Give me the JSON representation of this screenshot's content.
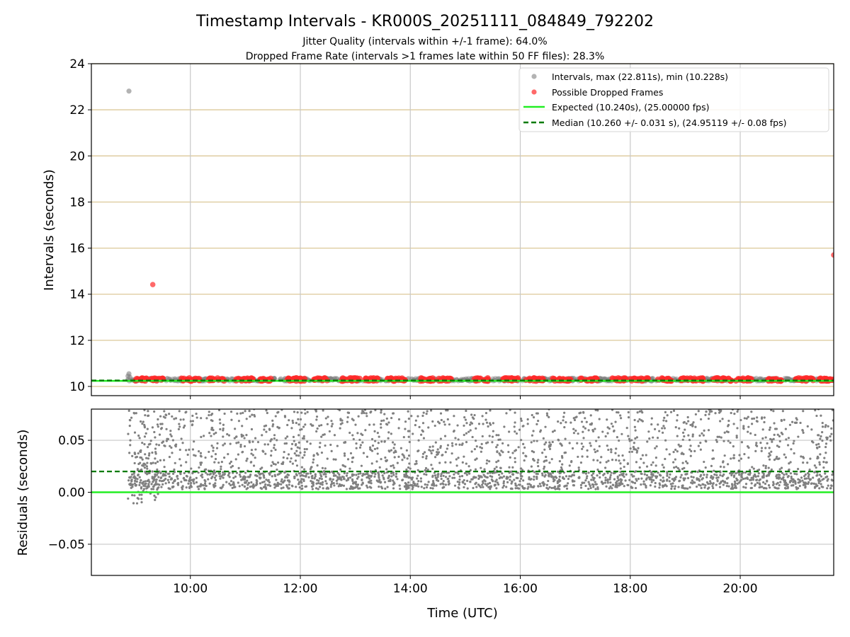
{
  "title": "Timestamp Intervals - KR000S_20251111_084849_792202",
  "subtitle_1": "Jitter Quality (intervals within +/-1 frame): 64.0%",
  "subtitle_2": "Dropped Frame Rate (intervals >1 frames late within 50 FF files): 28.3%",
  "colors": {
    "intervals": "#808080",
    "dropped": "#ff2a2a",
    "expected": "#22ee22",
    "median": "#007a00",
    "hgrid_top": "#d9c38f",
    "grid": "#c8c8c8"
  },
  "chart_data": [
    {
      "type": "scatter",
      "panel": "top",
      "xlabel": "",
      "ylabel": "Intervals (seconds)",
      "xlim": [
        "08:12",
        "21:42"
      ],
      "ylim": [
        9.6,
        24
      ],
      "yticks": [
        10,
        12,
        14,
        16,
        18,
        20,
        22,
        24
      ],
      "ytick_labels": [
        "10",
        "12",
        "14",
        "16",
        "18",
        "20",
        "22",
        "24"
      ],
      "xtick_values": [
        "10:00",
        "12:00",
        "14:00",
        "16:00",
        "18:00",
        "20:00"
      ],
      "grid": true,
      "legend_position": "top-right",
      "legend": [
        "Intervals, max (22.811s), min (10.228s)",
        "Possible Dropped Frames",
        "Expected (10.240s), (25.00000 fps)",
        "Median (10.260 +/- 0.031 s), (24.95119 +/- 0.08 fps)"
      ],
      "series": [
        {
          "name": "Intervals, max (22.811s), min (10.228s)",
          "kind": "scatter",
          "outliers": [
            {
              "x": "08:53",
              "y": 22.81
            },
            {
              "x": "08:53",
              "y": 10.55
            },
            {
              "x": "08:52",
              "y": 10.45
            },
            {
              "x": "08:54",
              "y": 10.4
            }
          ],
          "band": {
            "x_start": "08:50",
            "x_end": "21:42",
            "y_min": 10.228,
            "y_max": 10.36
          }
        },
        {
          "name": "Possible Dropped Frames",
          "kind": "scatter",
          "outliers": [
            {
              "x": "09:19",
              "y": 14.42
            },
            {
              "x": "21:42",
              "y": 15.7
            }
          ],
          "clusters": [
            {
              "x_start": "09:00",
              "x_end": "09:13"
            },
            {
              "x_start": "09:17",
              "x_end": "09:31"
            },
            {
              "x_start": "09:50",
              "x_end": "10:10"
            },
            {
              "x_start": "10:20",
              "x_end": "10:37"
            },
            {
              "x_start": "10:50",
              "x_end": "11:10"
            },
            {
              "x_start": "11:15",
              "x_end": "11:28"
            },
            {
              "x_start": "11:45",
              "x_end": "12:05"
            },
            {
              "x_start": "12:15",
              "x_end": "12:30"
            },
            {
              "x_start": "12:45",
              "x_end": "13:05"
            },
            {
              "x_start": "13:10",
              "x_end": "13:25"
            },
            {
              "x_start": "13:35",
              "x_end": "13:55"
            },
            {
              "x_start": "14:10",
              "x_end": "14:25"
            },
            {
              "x_start": "14:30",
              "x_end": "14:45"
            },
            {
              "x_start": "15:10",
              "x_end": "15:25"
            },
            {
              "x_start": "15:40",
              "x_end": "16:00"
            },
            {
              "x_start": "16:05",
              "x_end": "16:25"
            },
            {
              "x_start": "16:35",
              "x_end": "16:55"
            },
            {
              "x_start": "17:05",
              "x_end": "17:25"
            },
            {
              "x_start": "17:40",
              "x_end": "17:55"
            },
            {
              "x_start": "18:00",
              "x_end": "18:20"
            },
            {
              "x_start": "18:30",
              "x_end": "18:45"
            },
            {
              "x_start": "18:55",
              "x_end": "19:20"
            },
            {
              "x_start": "19:30",
              "x_end": "19:50"
            },
            {
              "x_start": "19:55",
              "x_end": "20:15"
            },
            {
              "x_start": "20:30",
              "x_end": "20:45"
            },
            {
              "x_start": "21:00",
              "x_end": "21:20"
            },
            {
              "x_start": "21:25",
              "x_end": "21:42"
            }
          ],
          "y": 10.3
        },
        {
          "name": "Expected (10.240s), (25.00000 fps)",
          "kind": "hline",
          "y": 10.24
        },
        {
          "name": "Median (10.260 +/- 0.031 s), (24.95119 +/- 0.08 fps)",
          "kind": "hline_dashed",
          "y": 10.26
        }
      ]
    },
    {
      "type": "scatter",
      "panel": "bottom",
      "xlabel": "Time (UTC)",
      "ylabel": "Residuals (seconds)",
      "xlim": [
        "08:12",
        "21:42"
      ],
      "ylim": [
        -0.08,
        0.08
      ],
      "yticks": [
        0.05,
        0,
        -0.05
      ],
      "ytick_labels": [
        "0.05",
        "0.00",
        "−0.05"
      ],
      "xticks": [
        "10:00",
        "12:00",
        "14:00",
        "16:00",
        "18:00",
        "20:00"
      ],
      "xtick_labels": [
        "10:00",
        "12:00",
        "14:00",
        "16:00",
        "18:00",
        "20:00"
      ],
      "grid": true,
      "series": [
        {
          "name": "residuals",
          "kind": "scatter",
          "x_start": "08:52",
          "x_end": "21:42",
          "dense_band": [
            0.003,
            0.02
          ],
          "sparse_range": [
            0.02,
            0.08
          ],
          "early_segment": {
            "x_start": "08:52",
            "x_end": "09:25",
            "y_min": -0.012,
            "y_max": 0.04
          }
        },
        {
          "name": "expected",
          "kind": "hline",
          "y": 0.0
        },
        {
          "name": "median",
          "kind": "hline_dashed",
          "y": 0.02
        }
      ]
    }
  ]
}
